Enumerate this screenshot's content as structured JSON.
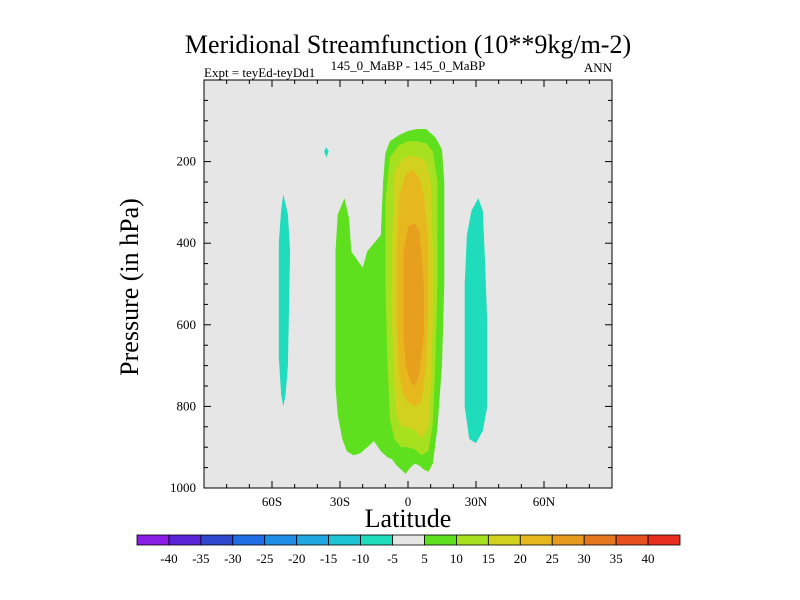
{
  "chart_data": {
    "type": "contour",
    "title": "Meridional Streamfunction (10**9kg/m-2)",
    "subtitle_left": "Expt = teyEd-teyDd1",
    "subtitle_center": "145_0_MaBP - 145_0_MaBP",
    "subtitle_right": "ANN",
    "xlabel": "Latitude",
    "ylabel": "Pressure (in hPa)",
    "xlim": [
      -90,
      90
    ],
    "ylim": [
      1000,
      0
    ],
    "x_ticks": [
      {
        "value": -60,
        "label": "60S"
      },
      {
        "value": -30,
        "label": "30S"
      },
      {
        "value": 0,
        "label": "0"
      },
      {
        "value": 30,
        "label": "30N"
      },
      {
        "value": 60,
        "label": "60N"
      }
    ],
    "y_ticks": [
      {
        "value": 200,
        "label": "200"
      },
      {
        "value": 400,
        "label": "400"
      },
      {
        "value": 600,
        "label": "600"
      },
      {
        "value": 800,
        "label": "800"
      },
      {
        "value": 1000,
        "label": "1000"
      }
    ],
    "plot_background": "#e6e6e6",
    "colorbar": {
      "labels": [
        "-40",
        "-35",
        "-30",
        "-25",
        "-20",
        "-15",
        "-10",
        "-5",
        "5",
        "10",
        "15",
        "20",
        "25",
        "30",
        "35",
        "40"
      ],
      "colors": [
        "#8b1ee6",
        "#5a23d6",
        "#2e47cd",
        "#1f6ee6",
        "#1e8ee8",
        "#1ea7e0",
        "#1ec3d4",
        "#1edcbc",
        "#e6e6e6",
        "#5ee01e",
        "#a6e01e",
        "#d2d21e",
        "#e6b81e",
        "#e69a1e",
        "#e6761e",
        "#e6501e",
        "#e62d1e"
      ]
    },
    "regions": [
      {
        "level": -10,
        "color": "#1edcbc",
        "points": [
          [
            -55,
            280
          ],
          [
            -53,
            330
          ],
          [
            -52,
            420
          ],
          [
            -53,
            700
          ],
          [
            -54,
            770
          ],
          [
            -55,
            800
          ],
          [
            -56,
            770
          ],
          [
            -57,
            680
          ],
          [
            -57,
            400
          ],
          [
            -56,
            320
          ]
        ]
      },
      {
        "level": -10,
        "color": "#1edcbc",
        "points": [
          [
            -36,
            165
          ],
          [
            -35,
            175
          ],
          [
            -36,
            190
          ],
          [
            -37,
            175
          ]
        ]
      },
      {
        "level": -10,
        "color": "#1edcbc",
        "points": [
          [
            31,
            290
          ],
          [
            33,
            320
          ],
          [
            34,
            450
          ],
          [
            35,
            600
          ],
          [
            35,
            800
          ],
          [
            33,
            860
          ],
          [
            30,
            890
          ],
          [
            27,
            880
          ],
          [
            25,
            800
          ],
          [
            25,
            500
          ],
          [
            26,
            380
          ],
          [
            28,
            320
          ]
        ]
      },
      {
        "level": 5,
        "color": "#5ee01e",
        "points": [
          [
            -28,
            290
          ],
          [
            -26,
            340
          ],
          [
            -25,
            420
          ],
          [
            -20,
            460
          ],
          [
            -18,
            420
          ],
          [
            -12,
            380
          ],
          [
            -11,
            250
          ],
          [
            -10,
            180
          ],
          [
            -8,
            150
          ],
          [
            -4,
            135
          ],
          [
            0,
            125
          ],
          [
            4,
            120
          ],
          [
            8,
            120
          ],
          [
            12,
            140
          ],
          [
            15,
            170
          ],
          [
            16,
            250
          ],
          [
            16,
            500
          ],
          [
            15,
            700
          ],
          [
            13,
            850
          ],
          [
            11,
            940
          ],
          [
            9,
            960
          ],
          [
            7,
            955
          ],
          [
            5,
            945
          ],
          [
            3,
            940
          ],
          [
            1,
            950
          ],
          [
            -1,
            965
          ],
          [
            -3,
            955
          ],
          [
            -5,
            945
          ],
          [
            -7,
            930
          ],
          [
            -9,
            925
          ],
          [
            -12,
            910
          ],
          [
            -15,
            885
          ],
          [
            -18,
            900
          ],
          [
            -21,
            915
          ],
          [
            -24,
            920
          ],
          [
            -27,
            910
          ],
          [
            -29,
            880
          ],
          [
            -31,
            820
          ],
          [
            -32,
            750
          ],
          [
            -32,
            600
          ],
          [
            -32,
            420
          ],
          [
            -31,
            330
          ]
        ]
      },
      {
        "level": 10,
        "color": "#a6e01e",
        "points": [
          [
            -8,
            190
          ],
          [
            -4,
            160
          ],
          [
            0,
            150
          ],
          [
            4,
            150
          ],
          [
            8,
            155
          ],
          [
            11,
            175
          ],
          [
            13,
            250
          ],
          [
            13,
            500
          ],
          [
            12,
            700
          ],
          [
            11,
            840
          ],
          [
            9,
            910
          ],
          [
            6,
            920
          ],
          [
            3,
            905
          ],
          [
            0,
            900
          ],
          [
            -3,
            900
          ],
          [
            -6,
            880
          ],
          [
            -8,
            830
          ],
          [
            -9,
            700
          ],
          [
            -10,
            500
          ],
          [
            -10,
            300
          ]
        ]
      },
      {
        "level": 15,
        "color": "#d2d21e",
        "points": [
          [
            -6,
            230
          ],
          [
            -3,
            195
          ],
          [
            1,
            185
          ],
          [
            5,
            190
          ],
          [
            8,
            200
          ],
          [
            10,
            250
          ],
          [
            11,
            420
          ],
          [
            11,
            600
          ],
          [
            10,
            760
          ],
          [
            9,
            850
          ],
          [
            6,
            880
          ],
          [
            3,
            860
          ],
          [
            0,
            850
          ],
          [
            -3,
            850
          ],
          [
            -5,
            820
          ],
          [
            -6,
            750
          ],
          [
            -7,
            600
          ],
          [
            -7,
            400
          ]
        ]
      },
      {
        "level": 20,
        "color": "#e6b81e",
        "points": [
          [
            -4,
            290
          ],
          [
            -1,
            230
          ],
          [
            2,
            220
          ],
          [
            5,
            240
          ],
          [
            7,
            280
          ],
          [
            9,
            400
          ],
          [
            9,
            560
          ],
          [
            8,
            700
          ],
          [
            6,
            790
          ],
          [
            3,
            800
          ],
          [
            0,
            790
          ],
          [
            -2,
            770
          ],
          [
            -4,
            720
          ],
          [
            -5,
            600
          ],
          [
            -5,
            420
          ]
        ]
      },
      {
        "level": 25,
        "color": "#e6a01e",
        "points": [
          [
            -2,
            420
          ],
          [
            0,
            360
          ],
          [
            3,
            350
          ],
          [
            5,
            370
          ],
          [
            6,
            430
          ],
          [
            7,
            500
          ],
          [
            7,
            620
          ],
          [
            5,
            720
          ],
          [
            3,
            750
          ],
          [
            1,
            740
          ],
          [
            -1,
            700
          ],
          [
            -2,
            630
          ]
        ]
      }
    ]
  }
}
